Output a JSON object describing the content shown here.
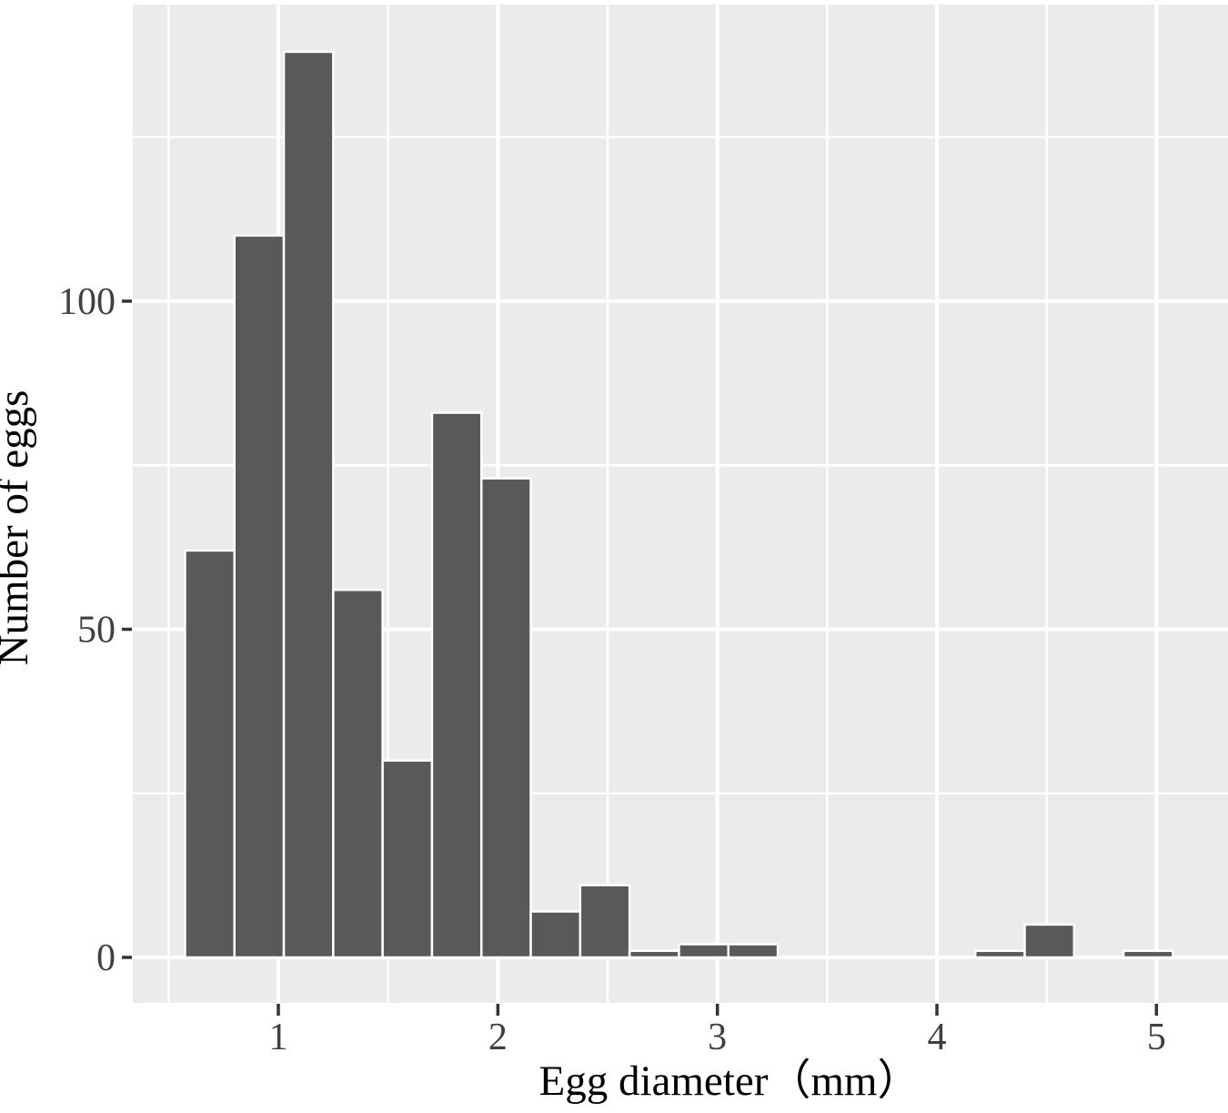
{
  "figure": {
    "background": "#FFFFFF",
    "description": "ggplot-style histogram of egg diameters"
  },
  "chart_data": {
    "type": "bar",
    "subtype": "histogram",
    "title": "",
    "xlabel": "Egg diameter（mm）",
    "ylabel": "Number of eggs",
    "bin_edges": [
      0.575,
      0.8,
      1.025,
      1.25,
      1.475,
      1.7,
      1.925,
      2.15,
      2.375,
      2.6,
      2.825,
      3.05,
      3.275,
      3.5,
      3.725,
      3.95,
      4.175,
      4.4,
      4.625,
      4.85,
      5.075
    ],
    "counts": [
      62,
      110,
      138,
      56,
      30,
      83,
      73,
      7,
      11,
      1,
      2,
      2,
      0,
      0,
      0,
      0,
      1,
      5,
      0,
      1
    ],
    "x_ticks": [
      1,
      2,
      3,
      4,
      5
    ],
    "y_ticks": [
      0,
      50,
      100
    ],
    "x_minor_gridlines": [
      0.5,
      1.5,
      2.5,
      3.5,
      4.5
    ],
    "y_minor_gridlines": [
      25,
      75,
      125
    ],
    "x_domain": [
      0.337,
      5.326
    ],
    "y_domain": [
      -6.93,
      145.2
    ],
    "grid": "white major and minor gridlines on grey panel",
    "legend_position": "none",
    "colors": {
      "bar_fill": "#595959",
      "bar_border": "#FFFFFF",
      "panel_bg": "#EBEBEB",
      "grid": "#FFFFFF",
      "tick": "#333333",
      "tick_label": "#404040",
      "axis_title": "#000000"
    }
  }
}
